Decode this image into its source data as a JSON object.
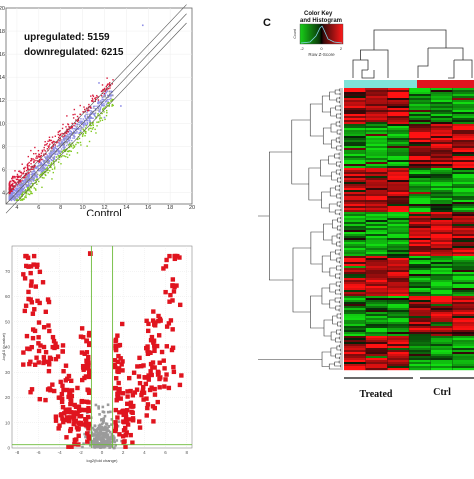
{
  "scatter": {
    "upregulated_label": "upregulated: 5159",
    "downregulated_label": "downregulated: 6215",
    "xlabel": "Control",
    "x_ticks": [
      "4",
      "6",
      "8",
      "10",
      "12",
      "14",
      "16",
      "18",
      "20"
    ],
    "y_ticks": [
      "4",
      "6",
      "8",
      "10",
      "12",
      "14",
      "16",
      "18",
      "20"
    ],
    "colors": {
      "up": "#d81b3c",
      "down": "#7fc81e",
      "mid": "#8f8fe6",
      "grey": "#9a9a9a"
    }
  },
  "volcano": {
    "ylabel": "-log10 (p-value)",
    "xlabel": "log2(fold change)",
    "x_ticks": [
      "-8",
      "-6",
      "-4",
      "-2",
      "0",
      "2",
      "4",
      "6",
      "8"
    ],
    "y_ticks": [
      "0",
      "10",
      "20",
      "30",
      "40",
      "50",
      "60",
      "70"
    ],
    "colors": {
      "sig": "#e0141e",
      "ns": "#9b9b9b",
      "threshold": "#6dbb3a"
    }
  },
  "heatmap": {
    "panel_letter": "C",
    "color_key_title": "Color Key",
    "color_key_subtitle": "and Histogram",
    "hist_axis_label": "Count",
    "key_ticks": [
      "-2",
      "0",
      "2"
    ],
    "key_label": "Row Z-Score",
    "group_treated": "Treated",
    "group_ctrl": "Ctrl",
    "colors": {
      "treated_bar": "#7fe3d8",
      "ctrl_bar": "#e0141e",
      "high": "#ff1a1a",
      "low": "#18c418"
    }
  }
}
